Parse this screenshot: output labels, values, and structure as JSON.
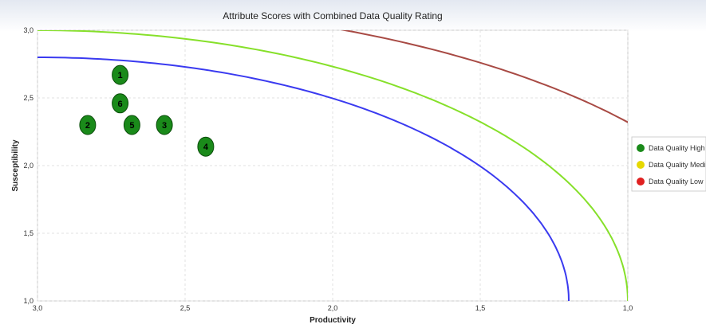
{
  "chart_data": {
    "type": "scatter",
    "title": "Attribute Scores with Combined Data Quality Rating",
    "xlabel": "Productivity",
    "ylabel": "Susceptibility",
    "xlim": [
      3.0,
      1.0
    ],
    "ylim": [
      1.0,
      3.0
    ],
    "x_ticks": [
      "3,0",
      "2,5",
      "2,0",
      "1,5",
      "1,0"
    ],
    "y_ticks": [
      "3,0",
      "2,5",
      "2,0",
      "1,5",
      "1,0"
    ],
    "x_tick_values": [
      3.0,
      2.5,
      2.0,
      1.5,
      1.0
    ],
    "y_tick_values": [
      3.0,
      2.5,
      2.0,
      1.5,
      1.0
    ],
    "grid": true,
    "legend_position": "right",
    "points": [
      {
        "label": "1",
        "x": 2.72,
        "y": 2.67,
        "quality": "high"
      },
      {
        "label": "6",
        "x": 2.72,
        "y": 2.46,
        "quality": "high"
      },
      {
        "label": "2",
        "x": 2.83,
        "y": 2.3,
        "quality": "high"
      },
      {
        "label": "5",
        "x": 2.68,
        "y": 2.3,
        "quality": "high"
      },
      {
        "label": "3",
        "x": 2.57,
        "y": 2.3,
        "quality": "high"
      },
      {
        "label": "4",
        "x": 2.43,
        "y": 2.14,
        "quality": "high"
      }
    ],
    "curves": [
      {
        "color": "#3a3af0",
        "cx": 3.0,
        "cy": 1.0,
        "rx": 1.8,
        "ry": 1.8
      },
      {
        "color": "#86e02a",
        "cx": 3.0,
        "cy": 1.0,
        "rx": 2.0,
        "ry": 2.0
      },
      {
        "color": "#a84a44",
        "cx": 3.0,
        "cy": 1.0,
        "rx": 2.5,
        "ry": 2.2
      }
    ],
    "legend": [
      {
        "label": "Data Quality High",
        "color": "#1a8a1a"
      },
      {
        "label": "Data Quality Medium",
        "color": "#e6d800"
      },
      {
        "label": "Data Quality Low",
        "color": "#e02020"
      }
    ]
  }
}
